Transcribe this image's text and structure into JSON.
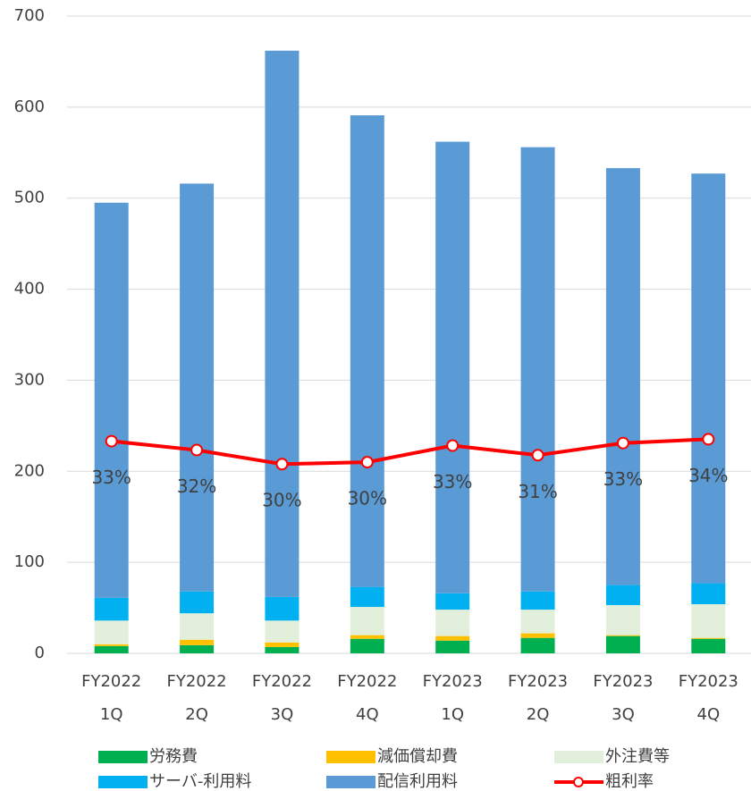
{
  "chart_data": {
    "type": "stacked-bar-line",
    "categories": [
      [
        "FY2022",
        "1Q"
      ],
      [
        "FY2022",
        "2Q"
      ],
      [
        "FY2022",
        "3Q"
      ],
      [
        "FY2022",
        "4Q"
      ],
      [
        "FY2023",
        "1Q"
      ],
      [
        "FY2023",
        "2Q"
      ],
      [
        "FY2023",
        "3Q"
      ],
      [
        "FY2023",
        "4Q"
      ]
    ],
    "series": [
      {
        "name": "労務費",
        "color": "#00b050",
        "values": [
          8,
          9,
          7,
          16,
          14,
          17,
          19,
          16
        ]
      },
      {
        "name": "減価償却費",
        "color": "#ffc000",
        "values": [
          2,
          6,
          5,
          4,
          5,
          5,
          1,
          1
        ]
      },
      {
        "name": "外注費等",
        "color": "#e2efda",
        "values": [
          26,
          29,
          24,
          31,
          29,
          26,
          33,
          37
        ]
      },
      {
        "name": "サーバ-利用料",
        "color": "#00b0f0",
        "values": [
          25,
          24,
          26,
          22,
          18,
          20,
          22,
          23
        ]
      },
      {
        "name": "配信利用料",
        "color": "#5b9bd5",
        "values": [
          434,
          448,
          600,
          518,
          496,
          488,
          458,
          450
        ]
      },
      {
        "name": "粗利率",
        "color": "#ff0000",
        "axis": "y2",
        "type": "line",
        "values": [
          33.3,
          31.9,
          29.7,
          30.0,
          32.6,
          31.1,
          33.0,
          33.6
        ],
        "value_labels": [
          "33%",
          "32%",
          "30%",
          "30%",
          "33%",
          "31%",
          "33%",
          "34%"
        ]
      }
    ],
    "ylim": [
      0,
      700
    ],
    "yticks": [
      0,
      100,
      200,
      300,
      400,
      500,
      600,
      700
    ],
    "y2lim": [
      0,
      100
    ],
    "grid": true,
    "legend": "bottom"
  }
}
